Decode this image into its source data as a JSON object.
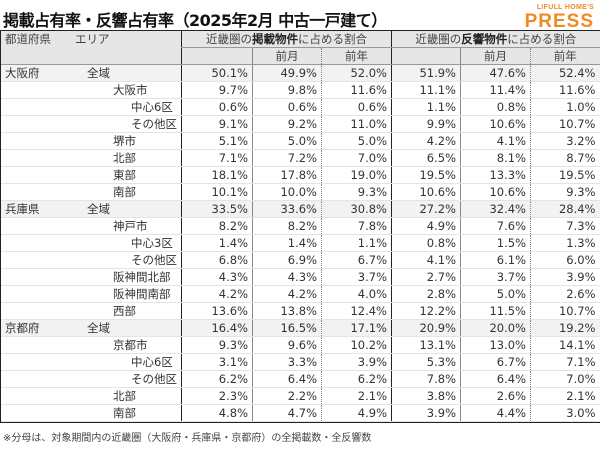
{
  "title": "掲載占有率・反響占有率（2025年2月 中古一戸建て）",
  "logo": {
    "line1": "LIFULL HOME'S",
    "line2": "PRESS",
    "color": "#f08a24"
  },
  "header": {
    "col_pref": "都道府県",
    "col_area": "エリア",
    "group1": {
      "prefix": "近畿圏の",
      "bold": "掲載物件",
      "suffix": "に占める割合"
    },
    "group2": {
      "prefix": "近畿圏の",
      "bold": "反響物件",
      "suffix": "に占める割合"
    },
    "prev_month": "前月",
    "prev_year": "前年"
  },
  "rows": [
    {
      "pref": "大阪府",
      "area": "全域",
      "level": 0,
      "v": [
        "50.1%",
        "49.9%",
        "52.0%",
        "51.9%",
        "47.6%",
        "52.4%"
      ]
    },
    {
      "pref": "",
      "area": "大阪市",
      "level": 2,
      "v": [
        "9.7%",
        "9.8%",
        "11.6%",
        "11.1%",
        "11.4%",
        "11.6%"
      ]
    },
    {
      "pref": "",
      "area": "中心6区",
      "level": 3,
      "v": [
        "0.6%",
        "0.6%",
        "0.6%",
        "1.1%",
        "0.8%",
        "1.0%"
      ]
    },
    {
      "pref": "",
      "area": "その他区",
      "level": 3,
      "v": [
        "9.1%",
        "9.2%",
        "11.0%",
        "9.9%",
        "10.6%",
        "10.7%"
      ]
    },
    {
      "pref": "",
      "area": "堺市",
      "level": 2,
      "v": [
        "5.1%",
        "5.0%",
        "5.0%",
        "4.2%",
        "4.1%",
        "3.2%"
      ]
    },
    {
      "pref": "",
      "area": "北部",
      "level": 2,
      "v": [
        "7.1%",
        "7.2%",
        "7.0%",
        "6.5%",
        "8.1%",
        "8.7%"
      ]
    },
    {
      "pref": "",
      "area": "東部",
      "level": 2,
      "v": [
        "18.1%",
        "17.8%",
        "19.0%",
        "19.5%",
        "13.3%",
        "19.5%"
      ]
    },
    {
      "pref": "",
      "area": "南部",
      "level": 2,
      "v": [
        "10.1%",
        "10.0%",
        "9.3%",
        "10.6%",
        "10.6%",
        "9.3%"
      ]
    },
    {
      "pref": "兵庫県",
      "area": "全域",
      "level": 0,
      "v": [
        "33.5%",
        "33.6%",
        "30.8%",
        "27.2%",
        "32.4%",
        "28.4%"
      ]
    },
    {
      "pref": "",
      "area": "神戸市",
      "level": 2,
      "v": [
        "8.2%",
        "8.2%",
        "7.8%",
        "4.9%",
        "7.6%",
        "7.3%"
      ]
    },
    {
      "pref": "",
      "area": "中心3区",
      "level": 3,
      "v": [
        "1.4%",
        "1.4%",
        "1.1%",
        "0.8%",
        "1.5%",
        "1.3%"
      ]
    },
    {
      "pref": "",
      "area": "その他区",
      "level": 3,
      "v": [
        "6.8%",
        "6.9%",
        "6.7%",
        "4.1%",
        "6.1%",
        "6.0%"
      ]
    },
    {
      "pref": "",
      "area": "阪神間北部",
      "level": 2,
      "v": [
        "4.3%",
        "4.3%",
        "3.7%",
        "2.7%",
        "3.7%",
        "3.9%"
      ]
    },
    {
      "pref": "",
      "area": "阪神間南部",
      "level": 2,
      "v": [
        "4.2%",
        "4.2%",
        "4.0%",
        "2.8%",
        "5.0%",
        "2.6%"
      ]
    },
    {
      "pref": "",
      "area": "西部",
      "level": 2,
      "v": [
        "13.6%",
        "13.8%",
        "12.4%",
        "12.2%",
        "11.5%",
        "10.7%"
      ]
    },
    {
      "pref": "京都府",
      "area": "全域",
      "level": 0,
      "v": [
        "16.4%",
        "16.5%",
        "17.1%",
        "20.9%",
        "20.0%",
        "19.2%"
      ]
    },
    {
      "pref": "",
      "area": "京都市",
      "level": 2,
      "v": [
        "9.3%",
        "9.6%",
        "10.2%",
        "13.1%",
        "13.0%",
        "14.1%"
      ]
    },
    {
      "pref": "",
      "area": "中心6区",
      "level": 3,
      "v": [
        "3.1%",
        "3.3%",
        "3.9%",
        "5.3%",
        "6.7%",
        "7.1%"
      ]
    },
    {
      "pref": "",
      "area": "その他区",
      "level": 3,
      "v": [
        "6.2%",
        "6.4%",
        "6.2%",
        "7.8%",
        "6.4%",
        "7.0%"
      ]
    },
    {
      "pref": "",
      "area": "北部",
      "level": 2,
      "v": [
        "2.3%",
        "2.2%",
        "2.1%",
        "3.8%",
        "2.6%",
        "2.1%"
      ]
    },
    {
      "pref": "",
      "area": "南部",
      "level": 2,
      "v": [
        "4.8%",
        "4.7%",
        "4.9%",
        "3.9%",
        "4.4%",
        "3.0%"
      ]
    }
  ],
  "footnote": "※分母は、対象期間内の近畿圏（大阪府・兵庫県・京都府）の全掲載数・全反響数"
}
